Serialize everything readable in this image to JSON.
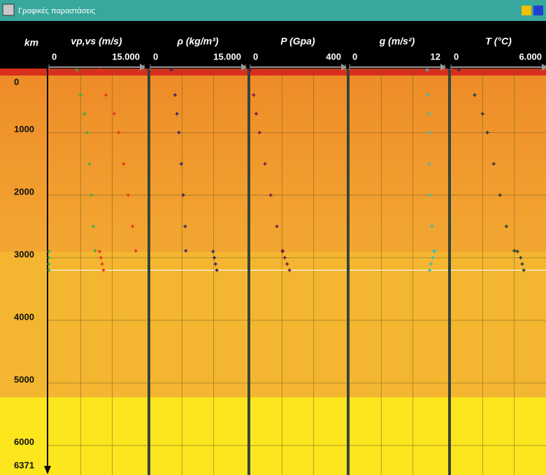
{
  "window_title": "Γραφικές παραστάσεις",
  "depth_axis": {
    "label": "km",
    "lim": [
      0,
      6371
    ],
    "ticks": [
      0,
      1000,
      2000,
      3000,
      4000,
      5000,
      6000,
      6371
    ]
  },
  "depths": [
    0,
    400,
    700,
    1000,
    1500,
    2000,
    2500,
    2890,
    2900,
    3000,
    3100,
    3200
  ],
  "chart_data": [
    {
      "type": "scatter",
      "title": "vp,vs (m/s)",
      "xlim": [
        0,
        15000
      ],
      "xticks": [
        0,
        {
          "value": 15000,
          "label": "15.000"
        }
      ],
      "series": [
        {
          "name": "vp",
          "color": "#e8321e",
          "values": [
            8000,
            9000,
            10300,
            11000,
            11800,
            12500,
            13200,
            13700,
            8000,
            8200,
            8400,
            8600
          ]
        },
        {
          "name": "vs",
          "color": "#2fb048",
          "values": [
            4400,
            5000,
            5600,
            6000,
            6400,
            6700,
            7000,
            7300,
            0,
            0,
            0,
            0
          ]
        }
      ]
    },
    {
      "type": "scatter",
      "title": "ρ (kg/m³)",
      "xlim": [
        0,
        15000
      ],
      "xticks": [
        0,
        {
          "value": 15000,
          "label": "15.000"
        }
      ],
      "series": [
        {
          "name": "ρ",
          "color": "#2a1f6e",
          "values": [
            3300,
            3900,
            4200,
            4500,
            4900,
            5200,
            5500,
            5600,
            9900,
            10100,
            10300,
            10500
          ]
        }
      ]
    },
    {
      "type": "scatter",
      "title": "P (Gpa)",
      "xlim": [
        0,
        400
      ],
      "xticks": [
        0,
        400
      ],
      "series": [
        {
          "name": "P",
          "color": "#6e1450",
          "values": [
            0,
            14,
            25,
            39,
            62,
            86,
            112,
            136,
            136,
            145,
            155,
            165
          ]
        }
      ]
    },
    {
      "type": "scatter",
      "title": "g (m/s²)",
      "xlim": [
        0,
        12
      ],
      "xticks": [
        0,
        12
      ],
      "series": [
        {
          "name": "g",
          "color": "#2cc0c0",
          "values": [
            9.8,
            9.9,
            10.0,
            10.0,
            10.0,
            10.1,
            10.4,
            10.7,
            10.7,
            10.5,
            10.3,
            10.1
          ]
        }
      ]
    },
    {
      "type": "scatter",
      "title": "T (°C)",
      "xlim": [
        0,
        6000
      ],
      "xticks": [
        0,
        {
          "value": 6000,
          "label": "6.000"
        }
      ],
      "series": [
        {
          "name": "T",
          "color": "#1c3a3a",
          "values": [
            500,
            1500,
            2000,
            2300,
            2700,
            3100,
            3500,
            4000,
            4200,
            4400,
            4500,
            4600
          ]
        }
      ]
    }
  ]
}
